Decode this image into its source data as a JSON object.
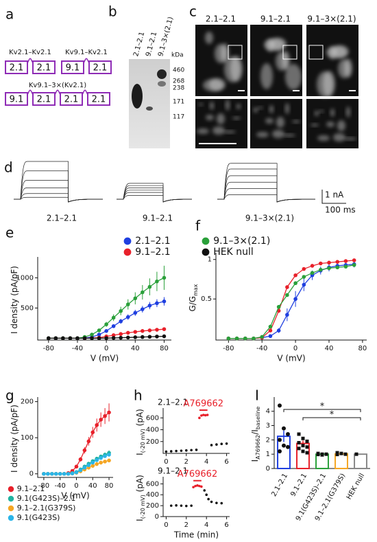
{
  "panels": {
    "letters": [
      "a",
      "b",
      "c",
      "d",
      "e",
      "f",
      "g",
      "h",
      "I"
    ],
    "a": {
      "constructs": [
        {
          "name": "Kv2.1–Kv2.1",
          "subunits": [
            "2.1",
            "2.1"
          ]
        },
        {
          "name": "Kv9.1–Kv2.1",
          "subunits": [
            "9.1",
            "2.1"
          ]
        },
        {
          "name": "Kv9.1–3×(Kv2.1)",
          "subunits": [
            "9.1",
            "2.1",
            "2.1",
            "2.1"
          ]
        }
      ]
    },
    "b": {
      "lanes": [
        "2.1–2.1",
        "9.1–2.1",
        "9.1–3×(2.1)"
      ],
      "unit": "kDa",
      "markers": [
        460,
        268,
        238,
        171,
        117
      ]
    },
    "c": {
      "columns": [
        "2.1–2.1",
        "9.1–2.1",
        "9.1–3×(2.1)"
      ]
    },
    "d": {
      "labels": [
        "2.1–2.1",
        "9.1–2.1",
        "9.1–3×(2.1)"
      ],
      "scale_current": "1 nA",
      "scale_time": "100 ms"
    }
  },
  "chart_data": [
    {
      "type": "line",
      "xlabel": "V (mV)",
      "ylabel": [
        "I density (pA/pF)"
      ],
      "x": [
        -80,
        -70,
        -60,
        -50,
        -40,
        -30,
        -20,
        -10,
        0,
        10,
        20,
        30,
        40,
        50,
        60,
        70,
        80
      ],
      "xlim": [
        -95,
        90
      ],
      "xticks": [
        -80,
        -40,
        0,
        40,
        80
      ],
      "ylim": [
        -30,
        1300
      ],
      "yticks": [
        500,
        1000
      ],
      "series": [
        {
          "name": "2.1–2.1",
          "color": "#1f3fe0",
          "values": [
            0,
            0,
            0,
            0,
            0,
            5,
            20,
            60,
            120,
            200,
            280,
            350,
            420,
            480,
            540,
            580,
            610
          ],
          "errors": [
            0,
            0,
            0,
            0,
            0,
            2,
            5,
            10,
            20,
            30,
            40,
            45,
            50,
            55,
            60,
            65,
            70
          ]
        },
        {
          "name": "9.1–2.1",
          "color": "#e8202a",
          "values": [
            0,
            0,
            0,
            0,
            0,
            0,
            2,
            10,
            30,
            50,
            70,
            90,
            105,
            120,
            130,
            140,
            150
          ],
          "errors": [
            0,
            0,
            0,
            0,
            0,
            0,
            1,
            3,
            6,
            10,
            12,
            14,
            16,
            18,
            20,
            22,
            24
          ]
        },
        {
          "name": "9.1–3×(2.1)",
          "color": "#2aa03a",
          "values": [
            0,
            0,
            0,
            0,
            0,
            20,
            60,
            130,
            230,
            340,
            450,
            560,
            660,
            760,
            850,
            940,
            1000
          ],
          "errors": [
            0,
            0,
            0,
            0,
            2,
            6,
            15,
            25,
            40,
            55,
            70,
            85,
            100,
            120,
            140,
            160,
            200
          ]
        },
        {
          "name": "HEK null",
          "color": "#111111",
          "values": [
            0,
            0,
            0,
            0,
            0,
            0,
            0,
            0,
            2,
            5,
            8,
            12,
            16,
            20,
            24,
            28,
            32
          ]
        }
      ]
    },
    {
      "type": "line",
      "xlabel": "V (mV)",
      "ylabel": [
        "G/G",
        "max"
      ],
      "x": [
        -80,
        -70,
        -60,
        -50,
        -40,
        -30,
        -20,
        -10,
        0,
        10,
        20,
        30,
        40,
        50,
        60,
        70
      ],
      "xlim": [
        -95,
        85
      ],
      "xticks": [
        -80,
        -40,
        0,
        40,
        80
      ],
      "ylim": [
        -0.02,
        1.05
      ],
      "yticks": [
        0.5,
        1
      ],
      "series": [
        {
          "color": "#1f3fe0",
          "values": [
            0,
            0,
            0,
            0,
            0.01,
            0.03,
            0.1,
            0.3,
            0.5,
            0.68,
            0.8,
            0.86,
            0.9,
            0.92,
            0.93,
            0.94
          ],
          "errors": [
            0,
            0,
            0,
            0,
            0,
            0.01,
            0.03,
            0.08,
            0.1,
            0.08,
            0.06,
            0.05,
            0.05,
            0.04,
            0.04,
            0.04
          ]
        },
        {
          "color": "#e8202a",
          "values": [
            0,
            0,
            0,
            0,
            0.01,
            0.1,
            0.35,
            0.65,
            0.8,
            0.88,
            0.92,
            0.95,
            0.96,
            0.97,
            0.98,
            0.99
          ]
        },
        {
          "color": "#2aa03a",
          "values": [
            0,
            0,
            0,
            0,
            0.02,
            0.15,
            0.4,
            0.55,
            0.7,
            0.78,
            0.83,
            0.87,
            0.89,
            0.9,
            0.91,
            0.93
          ]
        }
      ]
    },
    {
      "type": "line",
      "xlabel": "V (mV)",
      "ylabel": [
        "I density (pA/pF)"
      ],
      "x": [
        -80,
        -70,
        -60,
        -50,
        -40,
        -30,
        -20,
        -10,
        0,
        10,
        20,
        30,
        40,
        50,
        60,
        70,
        80
      ],
      "xlim": [
        -95,
        90
      ],
      "xticks": [
        -80,
        -40,
        0,
        40,
        80
      ],
      "ylim": [
        -10,
        205
      ],
      "yticks": [
        0,
        100,
        200
      ],
      "series": [
        {
          "name": "9.1–2.1",
          "color": "#e8202a",
          "values": [
            0,
            0,
            0,
            0,
            0,
            0,
            2,
            8,
            20,
            40,
            65,
            90,
            115,
            135,
            150,
            160,
            170
          ],
          "errors": [
            0,
            0,
            0,
            0,
            0,
            0,
            1,
            2,
            4,
            6,
            9,
            12,
            15,
            18,
            20,
            22,
            25
          ]
        },
        {
          "name": "9.1(G423S)–2.1",
          "color": "#20b2a0",
          "values": [
            0,
            0,
            0,
            0,
            0,
            0,
            0,
            2,
            5,
            12,
            20,
            28,
            35,
            42,
            48,
            53,
            58
          ],
          "errors": [
            0,
            0,
            0,
            0,
            0,
            0,
            0,
            1,
            1,
            2,
            3,
            3,
            4,
            4,
            5,
            6,
            7
          ]
        },
        {
          "name": "9.1–2.1(G379S)",
          "color": "#f5a623",
          "values": [
            0,
            0,
            0,
            0,
            0,
            0,
            0,
            1,
            3,
            7,
            12,
            17,
            22,
            27,
            31,
            34,
            37
          ]
        },
        {
          "name": "9.1(G423S)",
          "color": "#2bb5e8",
          "values": [
            0,
            0,
            0,
            0,
            0,
            0,
            0,
            1,
            4,
            10,
            17,
            24,
            31,
            38,
            44,
            49,
            53
          ]
        }
      ]
    },
    {
      "type": "scatter",
      "title": "2.1–2.1",
      "annotation": "A769662",
      "ylabel": [
        "I",
        "(-20 mV)",
        " (pA)"
      ],
      "xlim": [
        -0.3,
        6.3
      ],
      "xticks": [
        0,
        2,
        4,
        6
      ],
      "ylim": [
        0,
        720
      ],
      "yticks": [
        200,
        400,
        600
      ],
      "series": [
        {
          "color": "#111111",
          "x": [
            0,
            0.5,
            1,
            1.5,
            2,
            2.5,
            3
          ],
          "values": [
            30,
            35,
            40,
            45,
            50,
            55,
            60
          ]
        },
        {
          "color": "#e8202a",
          "x": [
            3.3,
            3.5,
            3.7,
            3.9,
            4.1
          ],
          "values": [
            600,
            640,
            650,
            645,
            650
          ]
        },
        {
          "color": "#111111",
          "x": [
            4.5,
            5,
            5.5,
            6
          ],
          "values": [
            140,
            150,
            160,
            165
          ]
        }
      ]
    },
    {
      "type": "scatter",
      "title": "9.1–2.1",
      "annotation": "A769662",
      "xlabel": "Time (min)",
      "ylabel": [
        "I",
        "(-20 mV)",
        " (pA)"
      ],
      "xlim": [
        -0.3,
        6.3
      ],
      "xticks": [
        0,
        2,
        4,
        6
      ],
      "ylim": [
        0,
        680
      ],
      "yticks": [
        0,
        200,
        400,
        600
      ],
      "series": [
        {
          "color": "#111111",
          "x": [
            0.5,
            1,
            1.5,
            2,
            2.5
          ],
          "values": [
            200,
            205,
            200,
            195,
            200
          ]
        },
        {
          "color": "#e8202a",
          "x": [
            2.7,
            2.9,
            3.1,
            3.3,
            3.5
          ],
          "values": [
            540,
            560,
            570,
            560,
            550
          ]
        },
        {
          "color": "#111111",
          "x": [
            3.8,
            4,
            4.2,
            4.5,
            5,
            5.5
          ],
          "values": [
            480,
            400,
            320,
            270,
            250,
            245
          ]
        }
      ]
    },
    {
      "type": "bar",
      "ylabel": [
        "I",
        "A769662",
        "/I",
        "baseline"
      ],
      "categories": [
        "2.1–2.1",
        "9.1–2.1",
        "9.1(G423S)–2.1",
        "9.1–2.1(G379S)",
        "HEK null"
      ],
      "values": [
        2.25,
        1.75,
        1.0,
        1.02,
        1.0
      ],
      "errors": [
        0.4,
        0.2,
        0.03,
        0.03,
        0
      ],
      "colors": [
        "#1f3fe0",
        "#e8202a",
        "#2aa03a",
        "#f5a623",
        "#888888"
      ],
      "points": [
        [
          4.4,
          2.8,
          2.4,
          2.0,
          1.6,
          1.5,
          1.2
        ],
        [
          2.4,
          2.1,
          1.9,
          1.8,
          1.6,
          1.5,
          1.4,
          1.2,
          1.1
        ],
        [
          1.05,
          1.0,
          1.0,
          0.98,
          0.95
        ],
        [
          1.1,
          1.05,
          1.0,
          0.98
        ],
        [
          1.0
        ]
      ],
      "ylim": [
        0,
        4.8
      ],
      "yticks": [
        0,
        1,
        2,
        3,
        4
      ],
      "annotations": [
        "*",
        "*"
      ]
    }
  ]
}
